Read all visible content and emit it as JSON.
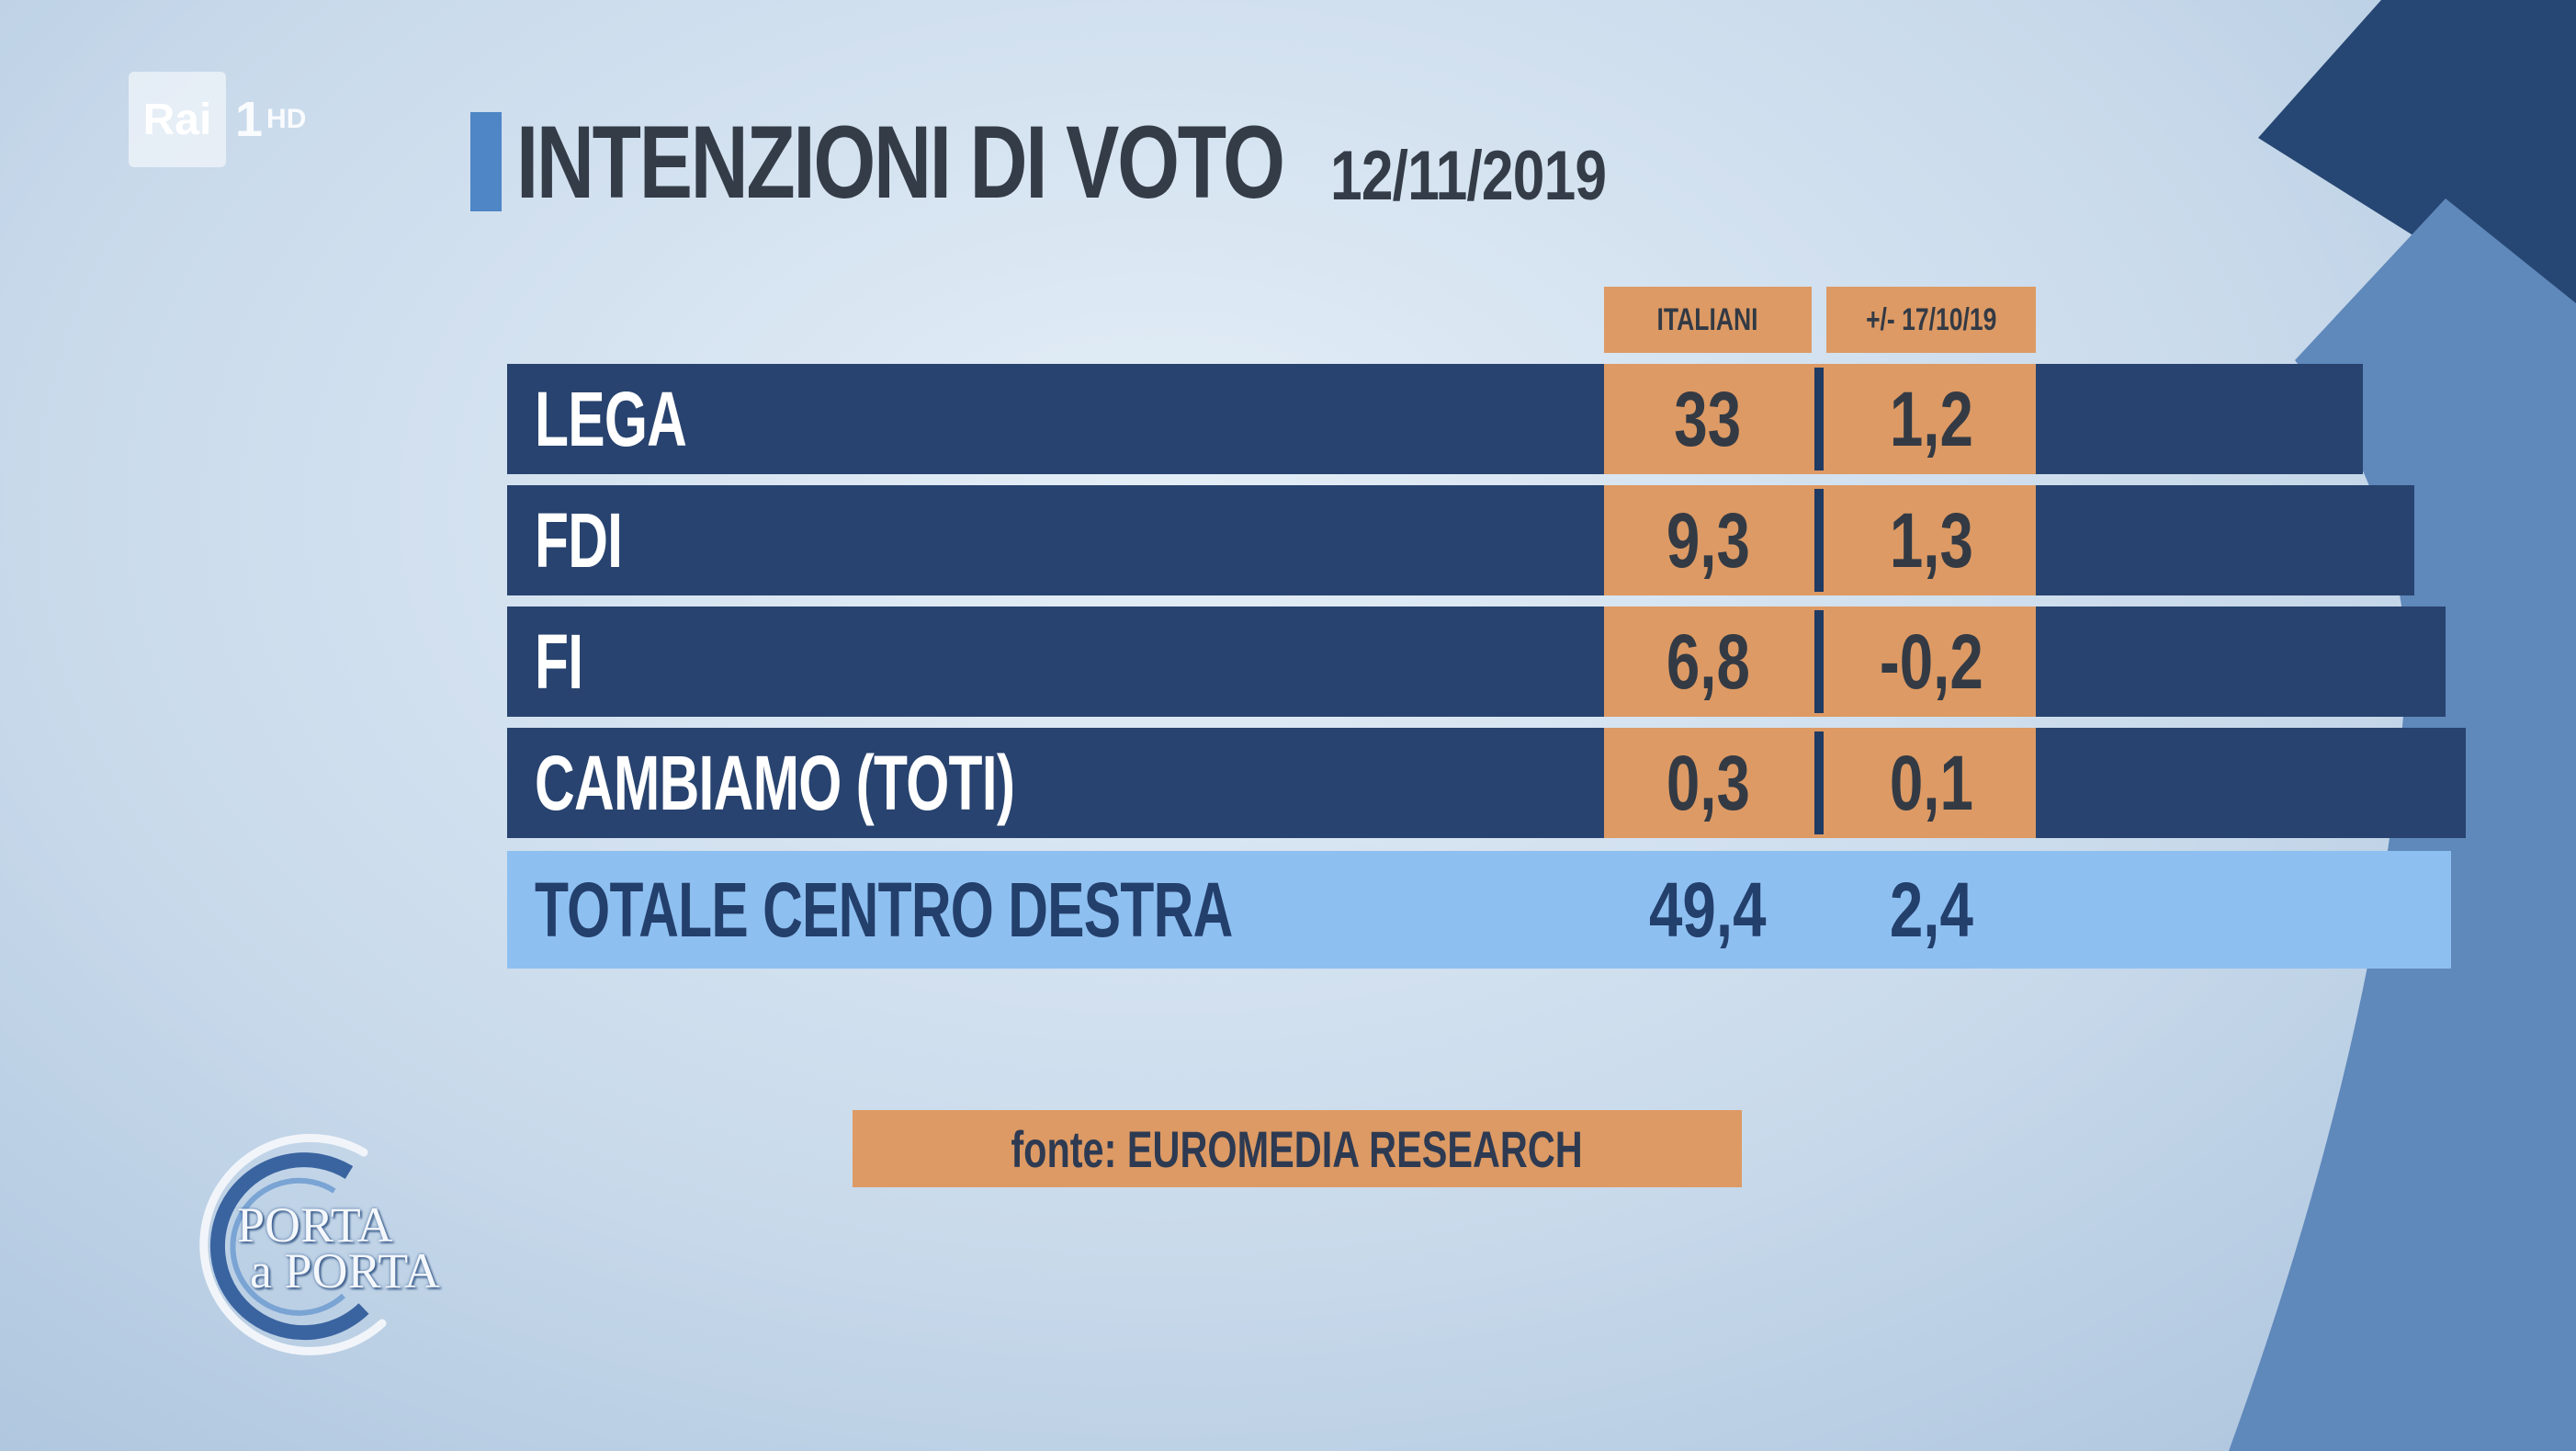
{
  "channel_logo": {
    "brand": "Rai",
    "channel": "1",
    "quality": "HD"
  },
  "title": {
    "main": "INTENZIONI DI VOTO",
    "date": "12/11/2019"
  },
  "chart_data": {
    "type": "table",
    "columns": [
      "ITALIANI",
      "+/- 17/10/19"
    ],
    "rows": [
      {
        "party": "LEGA",
        "italiani": "33",
        "change": "1,2"
      },
      {
        "party": "FDI",
        "italiani": "9,3",
        "change": "1,3"
      },
      {
        "party": "FI",
        "italiani": "6,8",
        "change": "-0,2"
      },
      {
        "party": "CAMBIAMO (TOTI)",
        "italiani": "0,3",
        "change": "0,1"
      }
    ],
    "total": {
      "label": "TOTALE CENTRO DESTRA",
      "italiani": "49,4",
      "change": "2,4"
    },
    "source": "fonte: EUROMEDIA RESEARCH"
  },
  "show_logo": {
    "line1": "PORTA",
    "line2": "a PORTA"
  },
  "colors": {
    "row_bg": "#28436f",
    "value_cell": "#dd9a64",
    "total_bg": "#8ebff1",
    "title_accent": "#4f86c6",
    "deco_dark": "#264673",
    "deco_light": "#5f88bb"
  }
}
